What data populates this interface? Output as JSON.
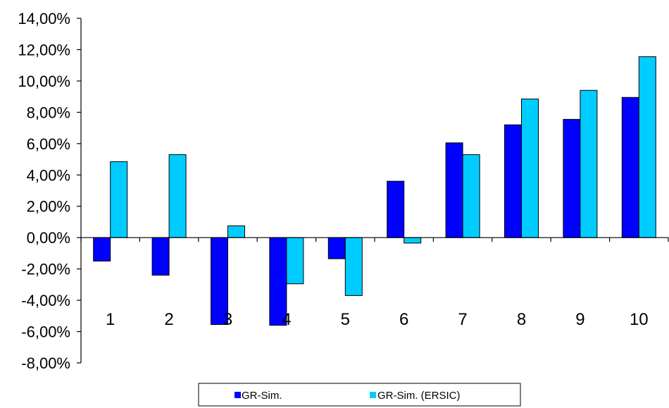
{
  "chart_data": {
    "type": "bar",
    "categories": [
      "1",
      "2",
      "3",
      "4",
      "5",
      "6",
      "7",
      "8",
      "9",
      "10"
    ],
    "series": [
      {
        "name": "GR-Sim.",
        "color": "#0000ff",
        "values": [
          -1.5,
          -2.4,
          -5.55,
          -5.6,
          -1.35,
          3.6,
          6.05,
          7.2,
          7.55,
          8.95
        ]
      },
      {
        "name": "GR-Sim. (ERSIC)",
        "color": "#00ccff",
        "values": [
          4.85,
          5.3,
          0.75,
          -2.95,
          -3.7,
          -0.35,
          5.3,
          8.85,
          9.4,
          11.55
        ]
      }
    ],
    "ylim": [
      -8,
      14
    ],
    "yticks": [
      "-8,00%",
      "-6,00%",
      "-4,00%",
      "-2,00%",
      "0,00%",
      "2,00%",
      "4,00%",
      "6,00%",
      "8,00%",
      "10,00%",
      "12,00%",
      "14,00%"
    ],
    "title": "",
    "xlabel": "",
    "ylabel": "",
    "grid": false,
    "legend_position": "bottom"
  }
}
